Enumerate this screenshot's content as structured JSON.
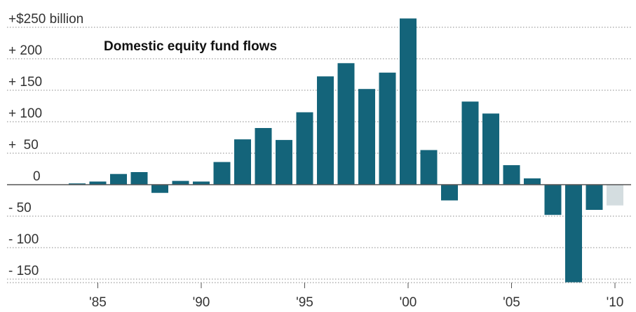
{
  "chart_data": {
    "type": "bar",
    "title": "Domestic equity fund flows",
    "xlabel": "",
    "ylabel": "",
    "ylim": [
      -155,
      250
    ],
    "y_ticks": [
      {
        "value": 250,
        "label": "+$250 billion"
      },
      {
        "value": 200,
        "label": "+ 200"
      },
      {
        "value": 150,
        "label": "+ 150"
      },
      {
        "value": 100,
        "label": "+ 100"
      },
      {
        "value": 50,
        "label": "+  50"
      },
      {
        "value": 0,
        "label": "0"
      },
      {
        "value": -50,
        "label": "- 50"
      },
      {
        "value": -100,
        "label": "- 100"
      },
      {
        "value": -150,
        "label": "- 150"
      }
    ],
    "x_ticks": [
      {
        "year": 1985,
        "label": "'85"
      },
      {
        "year": 1990,
        "label": "'90"
      },
      {
        "year": 1995,
        "label": "'95"
      },
      {
        "year": 2000,
        "label": "'00"
      },
      {
        "year": 2005,
        "label": "'05"
      },
      {
        "year": 2010,
        "label": "'10"
      }
    ],
    "categories": [
      1984,
      1985,
      1986,
      1987,
      1988,
      1989,
      1990,
      1991,
      1992,
      1993,
      1994,
      1995,
      1996,
      1997,
      1998,
      1999,
      2000,
      2001,
      2002,
      2003,
      2004,
      2005,
      2006,
      2007,
      2008,
      2009,
      2010
    ],
    "values": [
      2,
      5,
      17,
      20,
      -13,
      6,
      5,
      36,
      72,
      90,
      71,
      115,
      172,
      193,
      152,
      178,
      264,
      55,
      -25,
      132,
      113,
      31,
      10,
      -48,
      -155,
      -40,
      -33
    ],
    "partial_year": 2010,
    "colors": {
      "bar": "#14647a",
      "partial_bar": "#d4dde0",
      "axis": "#555555",
      "grid": "#888888"
    },
    "grid": "dotted horizontal",
    "legend": "none"
  }
}
